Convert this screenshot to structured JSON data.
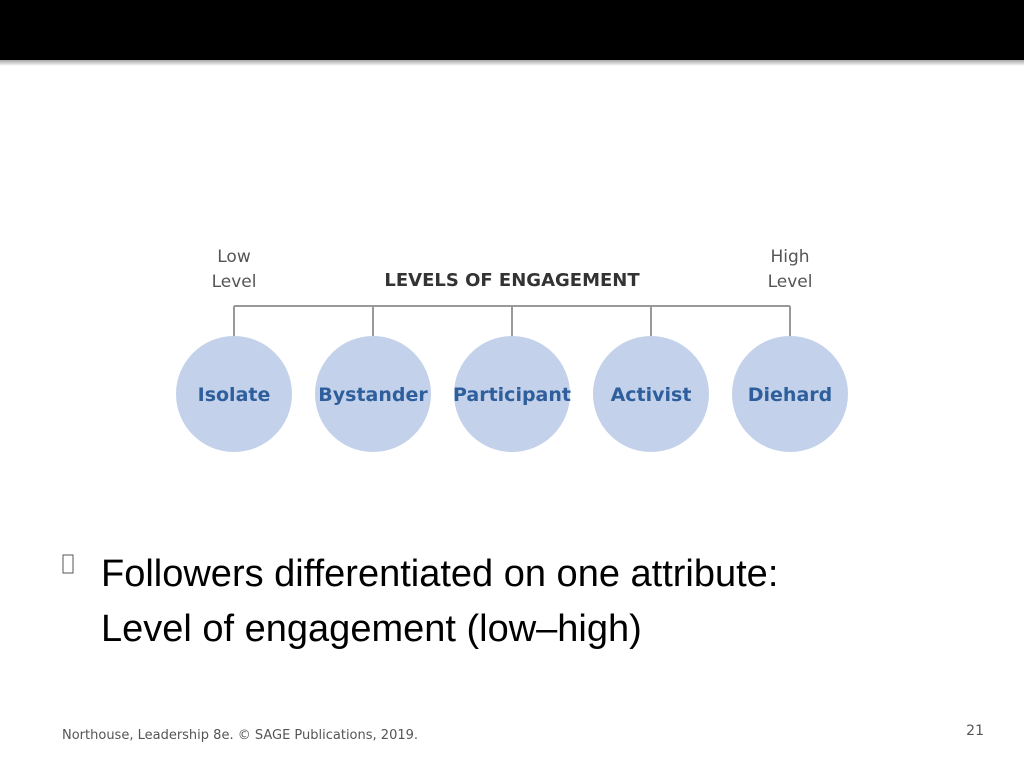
{
  "diagram": {
    "title": "LEVELS OF ENGAGEMENT",
    "low_label": [
      "Low",
      "Level"
    ],
    "high_label": [
      "High",
      "Level"
    ],
    "nodes": [
      {
        "label": "Isolate"
      },
      {
        "label": "Bystander"
      },
      {
        "label": "Participant"
      },
      {
        "label": "Activist"
      },
      {
        "label": "Diehard"
      }
    ]
  },
  "bullet": {
    "lines": [
      "Followers differentiated on one attribute:",
      "Level of engagement (low–high)"
    ]
  },
  "footer": {
    "citation": "Northouse, Leadership 8e. ©  SAGE Publications, 2019.",
    "page_number": "21"
  }
}
